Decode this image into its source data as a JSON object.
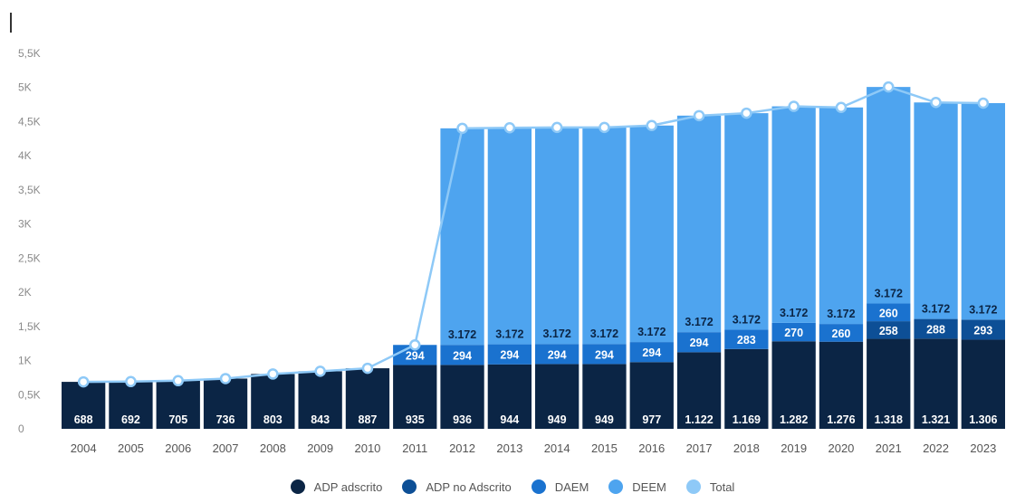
{
  "chart_data": {
    "type": "bar",
    "stacked": true,
    "categories": [
      "2004",
      "2005",
      "2006",
      "2007",
      "2008",
      "2009",
      "2010",
      "2011",
      "2012",
      "2013",
      "2014",
      "2015",
      "2016",
      "2017",
      "2018",
      "2019",
      "2020",
      "2021",
      "2022",
      "2023"
    ],
    "series": [
      {
        "name": "ADP adscrito",
        "color": "#0b2545",
        "values": [
          688,
          692,
          705,
          736,
          803,
          843,
          887,
          935,
          936,
          944,
          949,
          949,
          977,
          1122,
          1169,
          1282,
          1276,
          1318,
          1321,
          1306
        ],
        "labels": [
          "688",
          "692",
          "705",
          "736",
          "803",
          "843",
          "887",
          "935",
          "936",
          "944",
          "949",
          "949",
          "977",
          "1.122",
          "1.169",
          "1.282",
          "1.276",
          "1.318",
          "1.321",
          "1.306"
        ]
      },
      {
        "name": "ADP no Adscrito",
        "color": "#0d4f96",
        "values": [
          0,
          0,
          0,
          0,
          0,
          0,
          0,
          0,
          0,
          0,
          0,
          0,
          0,
          0,
          0,
          0,
          0,
          258,
          288,
          293
        ],
        "labels": [
          "",
          "",
          "",
          "",
          "",
          "",
          "",
          "",
          "",
          "",
          "",
          "",
          "",
          "",
          "",
          "",
          "",
          "258",
          "288",
          "293"
        ]
      },
      {
        "name": "DAEM",
        "color": "#1a72cf",
        "values": [
          0,
          0,
          0,
          0,
          0,
          0,
          0,
          294,
          294,
          294,
          294,
          294,
          294,
          294,
          283,
          270,
          260,
          260,
          0,
          0
        ],
        "labels": [
          "",
          "",
          "",
          "",
          "",
          "",
          "",
          "294",
          "294",
          "294",
          "294",
          "294",
          "294",
          "294",
          "283",
          "270",
          "260",
          "260",
          "",
          ""
        ]
      },
      {
        "name": "DEEM",
        "color": "#4ea4ef",
        "values": [
          0,
          0,
          0,
          0,
          0,
          0,
          0,
          0,
          3172,
          3172,
          3172,
          3172,
          3172,
          3172,
          3172,
          3172,
          3172,
          3172,
          3172,
          3172
        ],
        "labels": [
          "",
          "",
          "",
          "",
          "",
          "",
          "",
          "",
          "3.172",
          "3.172",
          "3.172",
          "3.172",
          "3.172",
          "3.172",
          "3.172",
          "3.172",
          "3.172",
          "3.172",
          "3.172",
          "3.172"
        ]
      },
      {
        "name": "Total",
        "color": "#8ec9f7",
        "type": "line",
        "values": [
          688,
          692,
          705,
          736,
          803,
          843,
          887,
          1229,
          4402,
          4410,
          4415,
          4415,
          4443,
          4588,
          4624,
          4724,
          4708,
          5008,
          4781,
          4771
        ]
      }
    ],
    "ylim": [
      0,
      5500
    ],
    "yticks": [
      {
        "value": 0,
        "label": "0"
      },
      {
        "value": 500,
        "label": "0,5K"
      },
      {
        "value": 1000,
        "label": "1K"
      },
      {
        "value": 1500,
        "label": "1,5K"
      },
      {
        "value": 2000,
        "label": "2K"
      },
      {
        "value": 2500,
        "label": "2,5K"
      },
      {
        "value": 3000,
        "label": "3K"
      },
      {
        "value": 3500,
        "label": "3,5K"
      },
      {
        "value": 4000,
        "label": "4K"
      },
      {
        "value": 4500,
        "label": "4,5K"
      },
      {
        "value": 5000,
        "label": "5K"
      },
      {
        "value": 5500,
        "label": "5,5K"
      }
    ],
    "title": "",
    "xlabel": "",
    "ylabel": "",
    "grid": false,
    "legend_position": "bottom-center"
  },
  "legend": [
    {
      "label": "ADP adscrito",
      "color": "#0b2545"
    },
    {
      "label": "ADP no Adscrito",
      "color": "#0d4f96"
    },
    {
      "label": "DAEM",
      "color": "#1a72cf"
    },
    {
      "label": "DEEM",
      "color": "#4ea4ef"
    },
    {
      "label": "Total",
      "color": "#8ec9f7"
    }
  ]
}
